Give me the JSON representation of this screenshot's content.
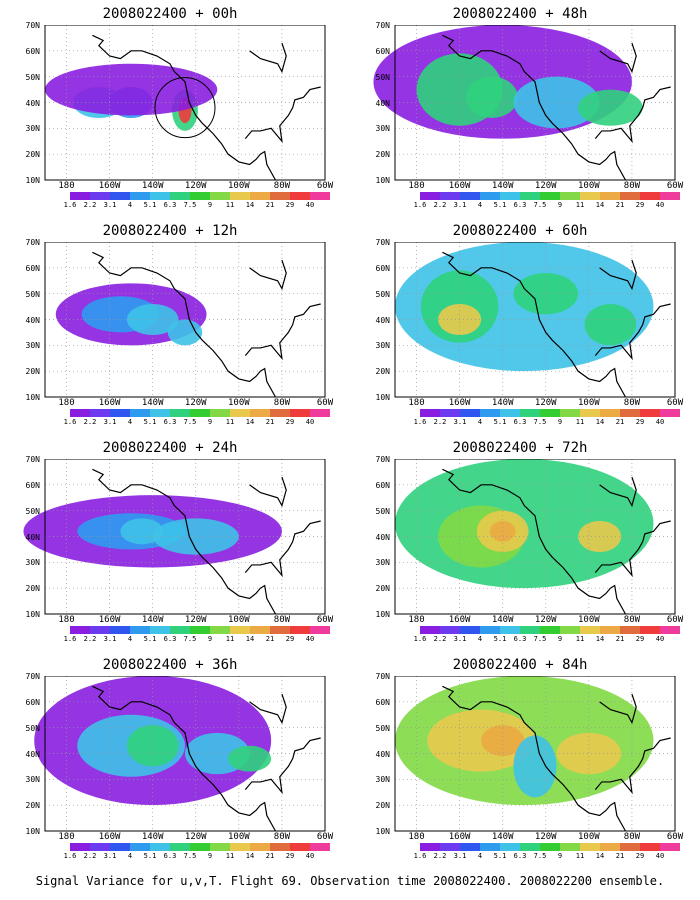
{
  "panels": [
    {
      "title": "2008022400 + 00h",
      "blobs": [
        [
          -165,
          40,
          12,
          6,
          "#3ec2e8"
        ],
        [
          -150,
          40,
          10,
          6,
          "#2f9bef"
        ],
        [
          -125,
          37,
          6,
          8,
          "#2fd17d"
        ],
        [
          -125,
          37,
          3,
          5,
          "#ef3b3b"
        ],
        [
          -150,
          45,
          40,
          10,
          "#8a1ee0"
        ]
      ]
    },
    {
      "title": "2008022400 + 12h",
      "blobs": [
        [
          -150,
          42,
          35,
          12,
          "#8a1ee0"
        ],
        [
          -155,
          42,
          18,
          7,
          "#2f9bef"
        ],
        [
          -140,
          40,
          12,
          6,
          "#3ec2e8"
        ],
        [
          -125,
          35,
          8,
          5,
          "#3ec2e8"
        ]
      ]
    },
    {
      "title": "2008022400 + 24h",
      "blobs": [
        [
          -140,
          42,
          60,
          14,
          "#8a1ee0"
        ],
        [
          -150,
          42,
          25,
          7,
          "#2f9bef"
        ],
        [
          -145,
          42,
          10,
          5,
          "#3ec2e8"
        ],
        [
          -120,
          40,
          20,
          7,
          "#3ec2e8"
        ]
      ]
    },
    {
      "title": "2008022400 + 36h",
      "blobs": [
        [
          -140,
          45,
          55,
          25,
          "#8a1ee0"
        ],
        [
          -150,
          43,
          25,
          12,
          "#3ec2e8"
        ],
        [
          -140,
          43,
          12,
          8,
          "#2fd17d"
        ],
        [
          -110,
          40,
          15,
          8,
          "#3ec2e8"
        ],
        [
          -95,
          38,
          10,
          5,
          "#2fd17d"
        ]
      ]
    },
    {
      "title": "2008022400 + 48h",
      "blobs": [
        [
          -140,
          48,
          60,
          22,
          "#8a1ee0"
        ],
        [
          -160,
          45,
          20,
          14,
          "#2fd17d"
        ],
        [
          -145,
          42,
          12,
          8,
          "#2fd17d"
        ],
        [
          -115,
          40,
          20,
          10,
          "#3ec2e8"
        ],
        [
          -90,
          38,
          15,
          7,
          "#2fd17d"
        ]
      ]
    },
    {
      "title": "2008022400 + 60h",
      "blobs": [
        [
          -130,
          45,
          60,
          25,
          "#3ec2e8"
        ],
        [
          -160,
          45,
          18,
          14,
          "#2fd17d"
        ],
        [
          -160,
          40,
          10,
          6,
          "#e8c94c"
        ],
        [
          -120,
          50,
          15,
          8,
          "#2fd17d"
        ],
        [
          -90,
          38,
          12,
          8,
          "#2fd17d"
        ]
      ]
    },
    {
      "title": "2008022400 + 72h",
      "blobs": [
        [
          -130,
          45,
          60,
          25,
          "#2fd17d"
        ],
        [
          -150,
          40,
          20,
          12,
          "#82d945"
        ],
        [
          -140,
          42,
          12,
          8,
          "#e8c94c"
        ],
        [
          -140,
          42,
          6,
          4,
          "#ebaa44"
        ],
        [
          -95,
          40,
          10,
          6,
          "#e8c94c"
        ]
      ]
    },
    {
      "title": "2008022400 + 84h",
      "blobs": [
        [
          -130,
          45,
          60,
          25,
          "#82d945"
        ],
        [
          -150,
          45,
          25,
          12,
          "#e8c94c"
        ],
        [
          -140,
          45,
          10,
          6,
          "#ebaa44"
        ],
        [
          -100,
          40,
          15,
          8,
          "#e8c94c"
        ],
        [
          -125,
          35,
          10,
          12,
          "#3ec2e8"
        ]
      ]
    }
  ],
  "lat_ticks": [
    "10N",
    "20N",
    "30N",
    "40N",
    "50N",
    "60N",
    "70N"
  ],
  "lon_ticks": [
    "180",
    "160W",
    "140W",
    "120W",
    "100W",
    "80W",
    "60W"
  ],
  "colorbar": {
    "labels": [
      "1.6",
      "2.2",
      "3.1",
      "4",
      "5.1",
      "6.3",
      "7.5",
      "9",
      "11",
      "14",
      "21",
      "29",
      "40"
    ],
    "colors": [
      "#ffffff",
      "#8a1ee0",
      "#6c3bef",
      "#2f56ef",
      "#2f9bef",
      "#3ec2e8",
      "#2fd17d",
      "#33cc33",
      "#82d945",
      "#e8c94c",
      "#ebaa44",
      "#e06b3c",
      "#ef3b3b",
      "#ef3b9c"
    ]
  },
  "caption": "Signal Variance for u,v,T. Flight 69. Observation time 2008022400. 2008022200 ensemble."
}
